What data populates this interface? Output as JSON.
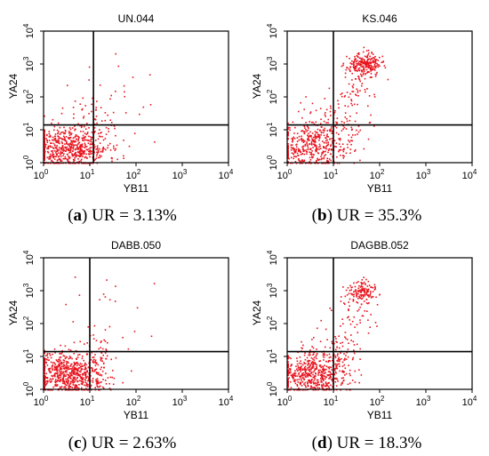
{
  "figure": {
    "panels": [
      {
        "letter": "a",
        "caption_rest": " UR = 3.13%"
      },
      {
        "letter": "b",
        "caption_rest": " UR = 35.3%"
      },
      {
        "letter": "c",
        "caption_rest": " UR = 2.63%"
      },
      {
        "letter": "d",
        "caption_rest": " UR = 18.3%"
      }
    ]
  },
  "colors": {
    "points": "#e8141e",
    "axes": "#000000"
  },
  "chart_data": [
    {
      "type": "scatter",
      "title": "UN.044",
      "xlabel": "YB11",
      "ylabel": "YA24",
      "xscale": "log",
      "yscale": "log",
      "xlim": [
        1,
        10000
      ],
      "ylim": [
        1,
        10000
      ],
      "ticks": [
        {
          "value": 1,
          "label": "10",
          "exp": "0"
        },
        {
          "value": 10,
          "label": "10",
          "exp": "1"
        },
        {
          "value": 100,
          "label": "10",
          "exp": "2"
        },
        {
          "value": 1000,
          "label": "10",
          "exp": "3"
        },
        {
          "value": 10000,
          "label": "10",
          "exp": "4"
        }
      ],
      "quadrant_gate": {
        "x": 12,
        "y": 14
      },
      "ur_percent": 3.13,
      "populations": [
        {
          "name": "",
          "count": 650,
          "x_center": 3.5,
          "y_center": 3,
          "x_spread": 0.42,
          "y_spread": 0.33,
          "seed": 11
        },
        {
          "name": "",
          "count": 40,
          "x_center": 15,
          "y_center": 25,
          "x_spread": 0.3,
          "y_spread": 0.3,
          "seed": 12
        },
        {
          "name": "",
          "count": 25,
          "x_center": 30,
          "y_center": 120,
          "x_spread": 0.6,
          "y_spread": 0.6,
          "seed": 13
        }
      ]
    },
    {
      "type": "scatter",
      "title": "KS.046",
      "xlabel": "YB11",
      "ylabel": "YA24",
      "xscale": "log",
      "yscale": "log",
      "xlim": [
        1,
        10000
      ],
      "ylim": [
        1,
        10000
      ],
      "ticks": [
        {
          "value": 1,
          "label": "10",
          "exp": "0"
        },
        {
          "value": 10,
          "label": "10",
          "exp": "1"
        },
        {
          "value": 100,
          "label": "10",
          "exp": "2"
        },
        {
          "value": 1000,
          "label": "10",
          "exp": "3"
        },
        {
          "value": 10000,
          "label": "10",
          "exp": "4"
        }
      ],
      "quadrant_gate": {
        "x": 10,
        "y": 14
      },
      "ur_percent": 35.3,
      "populations": [
        {
          "name": "",
          "count": 380,
          "x_center": 3.5,
          "y_center": 3,
          "x_spread": 0.4,
          "y_spread": 0.35,
          "seed": 21
        },
        {
          "name": "",
          "count": 120,
          "x_center": 10,
          "y_center": 15,
          "x_spread": 0.35,
          "y_spread": 0.4,
          "seed": 22
        },
        {
          "name": "",
          "count": 230,
          "x_center": 45,
          "y_center": 1000,
          "x_spread": 0.18,
          "y_spread": 0.17,
          "seed": 23
        },
        {
          "name": "",
          "count": 50,
          "x_center": 25,
          "y_center": 150,
          "x_spread": 0.25,
          "y_spread": 0.45,
          "seed": 24
        }
      ]
    },
    {
      "type": "scatter",
      "title": "DABB.050",
      "xlabel": "YB11",
      "ylabel": "YA24",
      "xscale": "log",
      "yscale": "log",
      "xlim": [
        1,
        10000
      ],
      "ylim": [
        1,
        10000
      ],
      "ticks": [
        {
          "value": 1,
          "label": "10",
          "exp": "0"
        },
        {
          "value": 10,
          "label": "10",
          "exp": "1"
        },
        {
          "value": 100,
          "label": "10",
          "exp": "2"
        },
        {
          "value": 1000,
          "label": "10",
          "exp": "3"
        },
        {
          "value": 10000,
          "label": "10",
          "exp": "4"
        }
      ],
      "quadrant_gate": {
        "x": 10,
        "y": 14
      },
      "ur_percent": 2.63,
      "populations": [
        {
          "name": "",
          "count": 700,
          "x_center": 3.5,
          "y_center": 3,
          "x_spread": 0.42,
          "y_spread": 0.33,
          "seed": 31
        },
        {
          "name": "",
          "count": 40,
          "x_center": 14,
          "y_center": 22,
          "x_spread": 0.25,
          "y_spread": 0.3,
          "seed": 32
        },
        {
          "name": "",
          "count": 18,
          "x_center": 25,
          "y_center": 200,
          "x_spread": 0.5,
          "y_spread": 0.6,
          "seed": 33
        }
      ]
    },
    {
      "type": "scatter",
      "title": "DAGBB.052",
      "xlabel": "YB11",
      "ylabel": "YA24",
      "xscale": "log",
      "yscale": "log",
      "xlim": [
        1,
        10000
      ],
      "ylim": [
        1,
        10000
      ],
      "ticks": [
        {
          "value": 1,
          "label": "10",
          "exp": "0"
        },
        {
          "value": 10,
          "label": "10",
          "exp": "1"
        },
        {
          "value": 100,
          "label": "10",
          "exp": "2"
        },
        {
          "value": 1000,
          "label": "10",
          "exp": "3"
        },
        {
          "value": 10000,
          "label": "10",
          "exp": "4"
        }
      ],
      "quadrant_gate": {
        "x": 10,
        "y": 14
      },
      "ur_percent": 18.3,
      "populations": [
        {
          "name": "",
          "count": 520,
          "x_center": 3.5,
          "y_center": 3,
          "x_spread": 0.4,
          "y_spread": 0.33,
          "seed": 41
        },
        {
          "name": "",
          "count": 80,
          "x_center": 10,
          "y_center": 14,
          "x_spread": 0.3,
          "y_spread": 0.35,
          "seed": 42
        },
        {
          "name": "",
          "count": 140,
          "x_center": 40,
          "y_center": 1000,
          "x_spread": 0.18,
          "y_spread": 0.18,
          "seed": 43
        },
        {
          "name": "",
          "count": 45,
          "x_center": 25,
          "y_center": 150,
          "x_spread": 0.3,
          "y_spread": 0.45,
          "seed": 44
        }
      ]
    }
  ]
}
